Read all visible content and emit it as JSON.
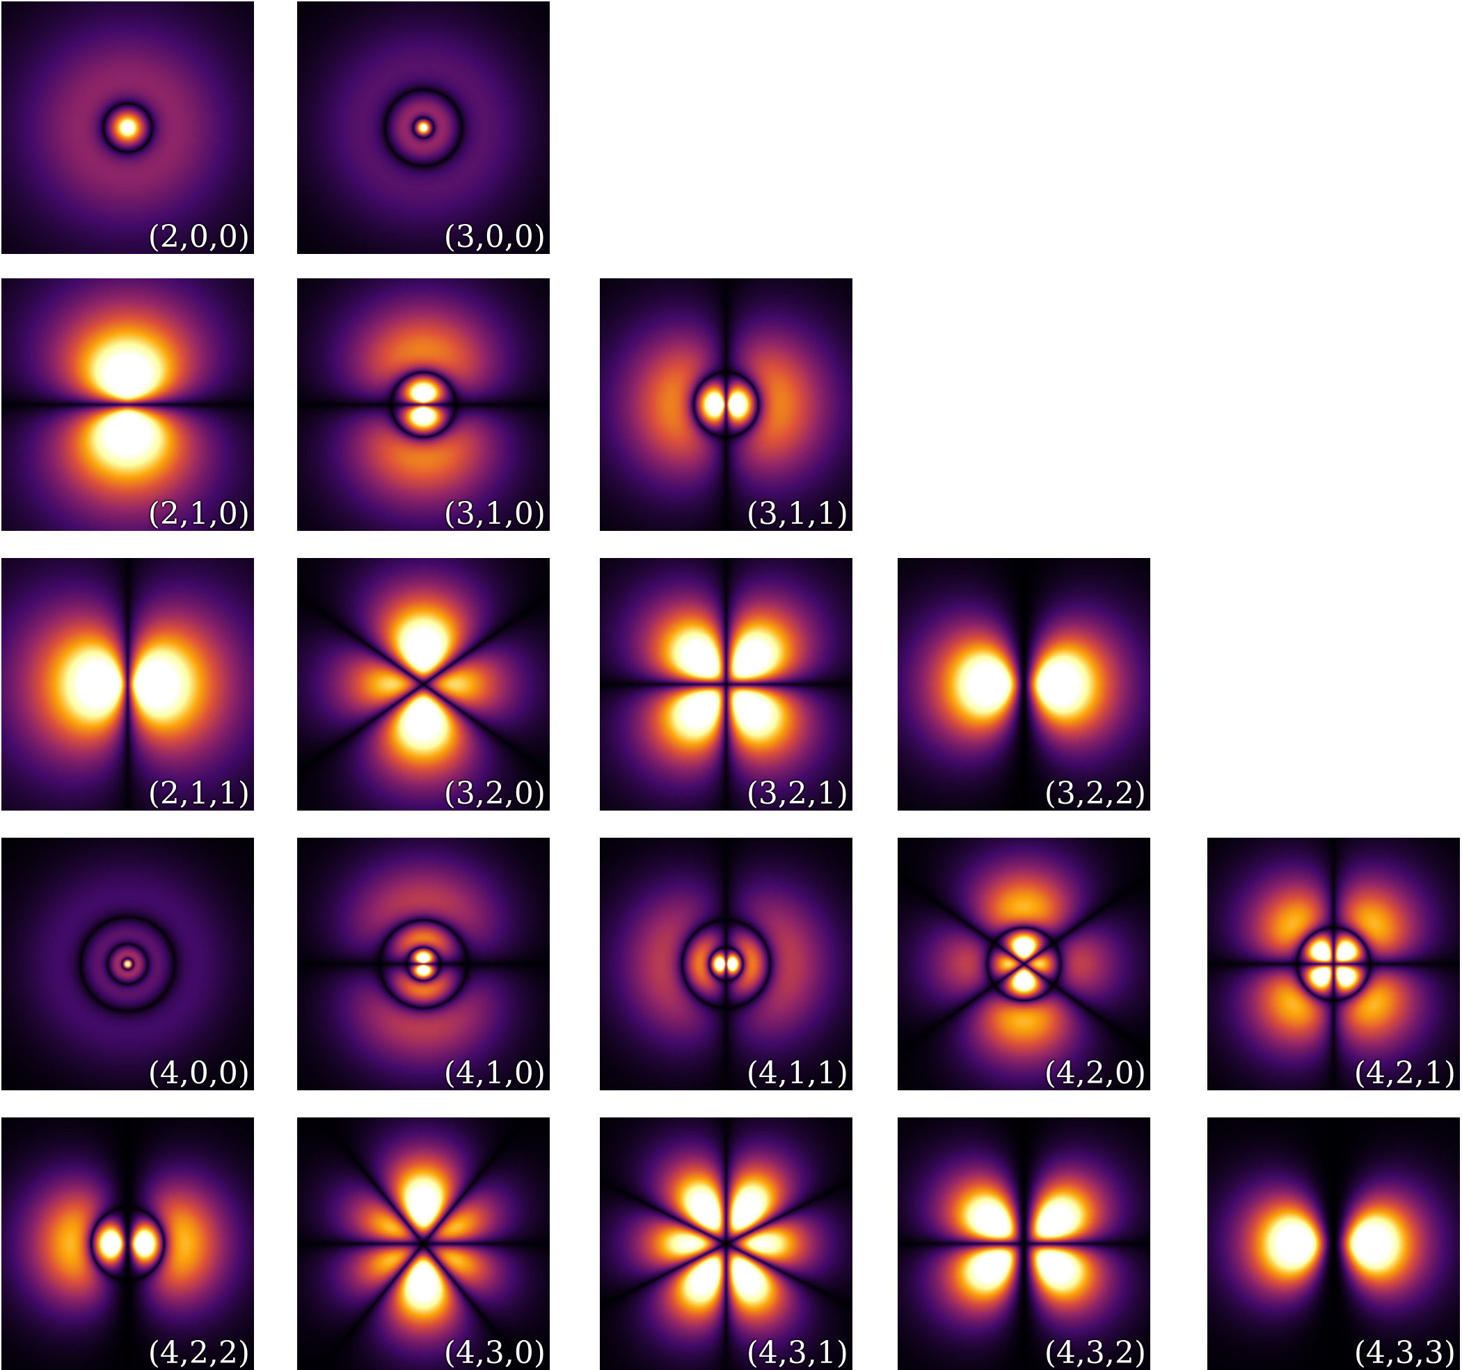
{
  "colormap": {
    "name": "inferno",
    "stops": [
      "#000004",
      "#420a68",
      "#932667",
      "#dd513a",
      "#fca50a",
      "#fcffa4",
      "#ffffff"
    ]
  },
  "orbitals": [
    {
      "label": "(2,0,0)",
      "n": 2,
      "l": 0,
      "m": 0
    },
    {
      "label": "(3,0,0)",
      "n": 3,
      "l": 0,
      "m": 0
    },
    {
      "label": "(2,1,0)",
      "n": 2,
      "l": 1,
      "m": 0
    },
    {
      "label": "(3,1,0)",
      "n": 3,
      "l": 1,
      "m": 0
    },
    {
      "label": "(3,1,1)",
      "n": 3,
      "l": 1,
      "m": 1
    },
    {
      "label": "(2,1,1)",
      "n": 2,
      "l": 1,
      "m": 1
    },
    {
      "label": "(3,2,0)",
      "n": 3,
      "l": 2,
      "m": 0
    },
    {
      "label": "(3,2,1)",
      "n": 3,
      "l": 2,
      "m": 1
    },
    {
      "label": "(3,2,2)",
      "n": 3,
      "l": 2,
      "m": 2
    },
    {
      "label": "(4,0,0)",
      "n": 4,
      "l": 0,
      "m": 0
    },
    {
      "label": "(4,1,0)",
      "n": 4,
      "l": 1,
      "m": 0
    },
    {
      "label": "(4,1,1)",
      "n": 4,
      "l": 1,
      "m": 1
    },
    {
      "label": "(4,2,0)",
      "n": 4,
      "l": 2,
      "m": 0
    },
    {
      "label": "(4,2,1)",
      "n": 4,
      "l": 2,
      "m": 1
    },
    {
      "label": "(4,2,2)",
      "n": 4,
      "l": 2,
      "m": 2
    },
    {
      "label": "(4,3,0)",
      "n": 4,
      "l": 3,
      "m": 0
    },
    {
      "label": "(4,3,1)",
      "n": 4,
      "l": 3,
      "m": 1
    },
    {
      "label": "(4,3,2)",
      "n": 4,
      "l": 3,
      "m": 2
    },
    {
      "label": "(4,3,3)",
      "n": 4,
      "l": 3,
      "m": 3
    }
  ]
}
